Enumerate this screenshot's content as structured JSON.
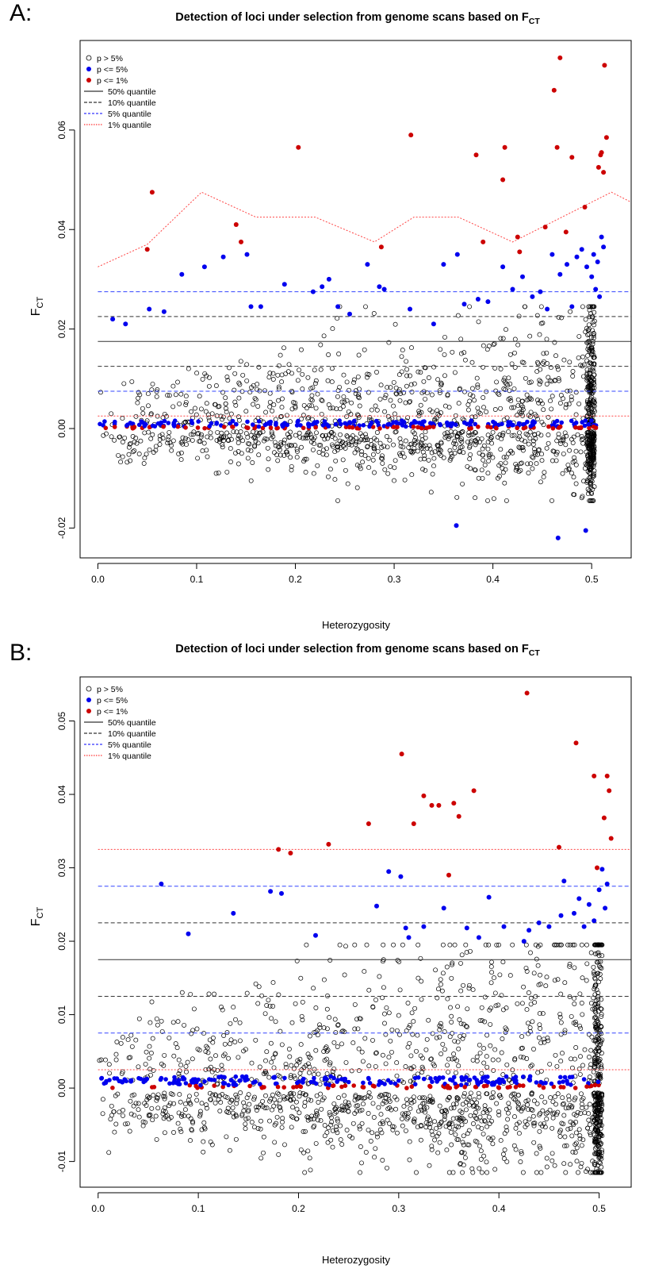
{
  "panels": [
    {
      "label": "A:",
      "title": "Detection of loci under selection from genome scans based on F",
      "title_sub": "CT",
      "xlabel": "Heterozygosity",
      "ylabel": "F",
      "ylabel_sub": "CT",
      "legend": [
        "p > 5%",
        "p <= 5%",
        "p <= 1%",
        "50% quantile",
        "10% quantile",
        "5% quantile",
        "1% quantile"
      ]
    },
    {
      "label": "B:",
      "title": "Detection of loci under selection from genome scans based on F",
      "title_sub": "CT",
      "xlabel": "Heterozygosity",
      "ylabel": "F",
      "ylabel_sub": "CT",
      "legend": [
        "p > 5%",
        "p <= 5%",
        "p <= 1%",
        "50% quantile",
        "10% quantile",
        "5% quantile",
        "1% quantile"
      ]
    }
  ],
  "chart_data": [
    {
      "type": "scatter",
      "title": "Detection of loci under selection from genome scans based on FCT",
      "xlabel": "Heterozygosity",
      "ylabel": "FCT",
      "xlim": [
        -0.018,
        0.54
      ],
      "ylim": [
        -0.026,
        0.078
      ],
      "x_ticks": [
        0.0,
        0.1,
        0.2,
        0.3,
        0.4,
        0.5
      ],
      "x_tick_labels": [
        "0.0",
        "0.1",
        "0.2",
        "0.3",
        "0.4",
        "0.5"
      ],
      "y_ticks": [
        -0.02,
        0.0,
        0.02,
        0.04,
        0.06
      ],
      "y_tick_labels": [
        "-0.02",
        "0.00",
        "0.02",
        "0.04",
        "0.06"
      ],
      "legend_position": "top-left",
      "colors": {
        "p_gt_5": "#000000",
        "p_le_5": "#0000ee",
        "p_le_1": "#cc0000",
        "q50": "#000000",
        "q10": "#000000",
        "q5": "#0000ff",
        "q1": "#ff0000"
      },
      "quantile_lines": [
        {
          "name": "50% quantile",
          "style": "solid",
          "x": [
            0.0,
            0.54
          ],
          "y": [
            0.0175,
            0.0175
          ]
        },
        {
          "name": "10% quantile",
          "style": "dashed",
          "x": [
            0.0,
            0.54
          ],
          "y": [
            0.0225,
            0.0225
          ]
        },
        {
          "name": "10% quantile",
          "style": "dashed",
          "x": [
            0.0,
            0.54
          ],
          "y": [
            0.0125,
            0.0125
          ]
        },
        {
          "name": "5% quantile",
          "style": "dashed",
          "x": [
            0.0,
            0.54
          ],
          "y": [
            0.0275,
            0.0275
          ]
        },
        {
          "name": "5% quantile",
          "style": "dashed",
          "x": [
            0.0,
            0.54
          ],
          "y": [
            0.0075,
            0.0075
          ]
        },
        {
          "name": "1% quantile",
          "style": "dotted",
          "x": [
            0.0,
            0.05,
            0.105,
            0.16,
            0.22,
            0.28,
            0.32,
            0.365,
            0.42,
            0.46,
            0.52,
            0.54
          ],
          "y": [
            0.0325,
            0.037,
            0.0475,
            0.0425,
            0.0425,
            0.0375,
            0.0425,
            0.0425,
            0.0375,
            0.0415,
            0.0475,
            0.0455
          ]
        },
        {
          "name": "1% quantile",
          "style": "dotted",
          "x": [
            0.0,
            0.54
          ],
          "y": [
            0.0025,
            0.0025
          ]
        }
      ],
      "series": [
        {
          "name": "p <= 1%",
          "x": [
            0.05,
            0.055,
            0.14,
            0.145,
            0.203,
            0.287,
            0.317,
            0.383,
            0.39,
            0.41,
            0.412,
            0.425,
            0.427,
            0.453,
            0.462,
            0.465,
            0.468,
            0.474,
            0.48,
            0.493,
            0.507,
            0.509,
            0.51,
            0.512,
            0.513,
            0.515
          ],
          "y": [
            0.036,
            0.0475,
            0.041,
            0.0375,
            0.0565,
            0.0365,
            0.059,
            0.055,
            0.0375,
            0.05,
            0.0565,
            0.0385,
            0.0355,
            0.0405,
            0.068,
            0.0565,
            0.0745,
            0.0395,
            0.0545,
            0.0445,
            0.0525,
            0.055,
            0.0555,
            0.0515,
            0.073,
            0.0585
          ]
        },
        {
          "name": "p <= 5%",
          "x": [
            0.015,
            0.028,
            0.052,
            0.067,
            0.085,
            0.108,
            0.127,
            0.151,
            0.155,
            0.165,
            0.189,
            0.218,
            0.227,
            0.234,
            0.243,
            0.255,
            0.273,
            0.285,
            0.29,
            0.316,
            0.34,
            0.35,
            0.364,
            0.371,
            0.385,
            0.395,
            0.41,
            0.42,
            0.43,
            0.44,
            0.448,
            0.455,
            0.46,
            0.468,
            0.475,
            0.48,
            0.485,
            0.49,
            0.495,
            0.5,
            0.502,
            0.504,
            0.506,
            0.508,
            0.51,
            0.512,
            0.363,
            0.466,
            0.494
          ],
          "y": [
            0.022,
            0.021,
            0.024,
            0.0235,
            0.031,
            0.0325,
            0.0345,
            0.035,
            0.0245,
            0.0245,
            0.029,
            0.0275,
            0.0285,
            0.03,
            0.0245,
            0.023,
            0.033,
            0.0285,
            0.028,
            0.024,
            0.021,
            0.033,
            0.035,
            0.025,
            0.026,
            0.0255,
            0.0325,
            0.028,
            0.0305,
            0.0265,
            0.0275,
            0.024,
            0.035,
            0.031,
            0.033,
            0.0245,
            0.0345,
            0.036,
            0.0325,
            0.0305,
            0.035,
            0.028,
            0.0335,
            0.0265,
            0.0385,
            0.0365,
            -0.0195,
            -0.022,
            -0.0205
          ]
        }
      ]
    },
    {
      "type": "scatter",
      "title": "Detection of loci under selection from genome scans based on FCT",
      "xlabel": "Heterozygosity",
      "ylabel": "FCT",
      "xlim": [
        -0.018,
        0.532
      ],
      "ylim": [
        -0.0135,
        0.056
      ],
      "x_ticks": [
        0.0,
        0.1,
        0.2,
        0.3,
        0.4,
        0.5
      ],
      "x_tick_labels": [
        "0.0",
        "0.1",
        "0.2",
        "0.3",
        "0.4",
        "0.5"
      ],
      "y_ticks": [
        -0.01,
        0.0,
        0.01,
        0.02,
        0.03,
        0.04,
        0.05
      ],
      "y_tick_labels": [
        "-0.01",
        "0.00",
        "0.01",
        "0.02",
        "0.03",
        "0.04",
        "0.05"
      ],
      "legend_position": "top-left",
      "colors": {
        "p_gt_5": "#000000",
        "p_le_5": "#0000ee",
        "p_le_1": "#cc0000",
        "q50": "#000000",
        "q10": "#000000",
        "q5": "#0000ff",
        "q1": "#ff0000"
      },
      "quantile_lines": [
        {
          "name": "50% quantile",
          "style": "solid",
          "x": [
            0.0,
            0.532
          ],
          "y": [
            0.0175,
            0.0175
          ]
        },
        {
          "name": "10% quantile",
          "style": "dashed",
          "x": [
            0.0,
            0.532
          ],
          "y": [
            0.0225,
            0.0225
          ]
        },
        {
          "name": "10% quantile",
          "style": "dashed",
          "x": [
            0.0,
            0.532
          ],
          "y": [
            0.0125,
            0.0125
          ]
        },
        {
          "name": "5% quantile",
          "style": "dashed",
          "x": [
            0.0,
            0.532
          ],
          "y": [
            0.0275,
            0.0275
          ]
        },
        {
          "name": "5% quantile",
          "style": "dashed",
          "x": [
            0.0,
            0.532
          ],
          "y": [
            0.0075,
            0.0075
          ]
        },
        {
          "name": "1% quantile",
          "style": "dotted",
          "x": [
            0.0,
            0.532
          ],
          "y": [
            0.0325,
            0.0325
          ]
        },
        {
          "name": "1% quantile",
          "style": "dotted",
          "x": [
            0.0,
            0.532
          ],
          "y": [
            0.0025,
            0.0025
          ]
        }
      ],
      "series": [
        {
          "name": "p <= 1%",
          "x": [
            0.18,
            0.192,
            0.23,
            0.27,
            0.303,
            0.315,
            0.325,
            0.333,
            0.34,
            0.35,
            0.355,
            0.36,
            0.375,
            0.428,
            0.46,
            0.477,
            0.495,
            0.498,
            0.505,
            0.508,
            0.51,
            0.512
          ],
          "y": [
            0.0325,
            0.032,
            0.0332,
            0.036,
            0.0455,
            0.036,
            0.0398,
            0.0385,
            0.0385,
            0.029,
            0.0388,
            0.037,
            0.0405,
            0.0538,
            0.0328,
            0.047,
            0.0425,
            0.03,
            0.0368,
            0.0425,
            0.0405,
            0.034
          ]
        },
        {
          "name": "p <= 5%",
          "x": [
            0.063,
            0.09,
            0.135,
            0.172,
            0.183,
            0.217,
            0.278,
            0.29,
            0.302,
            0.307,
            0.31,
            0.325,
            0.345,
            0.368,
            0.38,
            0.39,
            0.405,
            0.425,
            0.43,
            0.44,
            0.45,
            0.462,
            0.465,
            0.475,
            0.48,
            0.485,
            0.49,
            0.495,
            0.5,
            0.503,
            0.506,
            0.508
          ],
          "y": [
            0.0278,
            0.021,
            0.0238,
            0.0268,
            0.0265,
            0.0208,
            0.0248,
            0.0295,
            0.0288,
            0.0218,
            0.0205,
            0.022,
            0.0245,
            0.0218,
            0.0205,
            0.026,
            0.022,
            0.02,
            0.0215,
            0.0225,
            0.022,
            0.0235,
            0.0282,
            0.0238,
            0.0258,
            0.022,
            0.025,
            0.0228,
            0.027,
            0.0298,
            0.0245,
            0.0278
          ]
        }
      ]
    }
  ]
}
